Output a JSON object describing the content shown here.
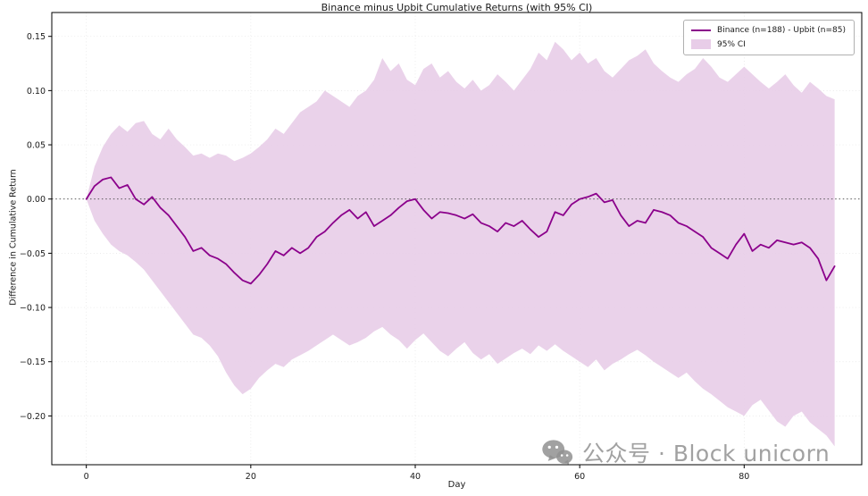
{
  "figure": {
    "title": "Binance minus Upbit Cumulative Returns (with 95% CI)",
    "xlabel": "Day",
    "ylabel": "Difference in Cumulative Return"
  },
  "legend": {
    "items": [
      {
        "label": "Binance (n=188) - Upbit (n=85)",
        "swatch": "line",
        "color": "#8B008B"
      },
      {
        "label": "95% CI",
        "swatch": "patch",
        "color": "#E8CDE8"
      }
    ]
  },
  "axes": {
    "x_ticks": [
      {
        "value": 0,
        "label": "0"
      },
      {
        "value": 20,
        "label": "20"
      },
      {
        "value": 40,
        "label": "40"
      },
      {
        "value": 60,
        "label": "60"
      },
      {
        "value": 80,
        "label": "80"
      }
    ],
    "y_ticks": [
      {
        "value": -0.2,
        "label": "−0.20"
      },
      {
        "value": -0.15,
        "label": "−0.15"
      },
      {
        "value": -0.1,
        "label": "−0.10"
      },
      {
        "value": -0.05,
        "label": "−0.05"
      },
      {
        "value": 0.0,
        "label": "0.00"
      },
      {
        "value": 0.05,
        "label": "0.05"
      },
      {
        "value": 0.1,
        "label": "0.10"
      },
      {
        "value": 0.15,
        "label": "0.15"
      }
    ]
  },
  "chart_data": {
    "type": "line",
    "title": "Binance minus Upbit Cumulative Returns (with 95% CI)",
    "xlabel": "Day",
    "ylabel": "Difference in Cumulative Return",
    "xlim": [
      -4.2,
      94.3
    ],
    "ylim": [
      -0.245,
      0.172
    ],
    "grid": true,
    "zero_line": true,
    "legend_position": "upper right",
    "x": [
      0,
      1,
      2,
      3,
      4,
      5,
      6,
      7,
      8,
      9,
      10,
      11,
      12,
      13,
      14,
      15,
      16,
      17,
      18,
      19,
      20,
      21,
      22,
      23,
      24,
      25,
      26,
      27,
      28,
      29,
      30,
      31,
      32,
      33,
      34,
      35,
      36,
      37,
      38,
      39,
      40,
      41,
      42,
      43,
      44,
      45,
      46,
      47,
      48,
      49,
      50,
      51,
      52,
      53,
      54,
      55,
      56,
      57,
      58,
      59,
      60,
      61,
      62,
      63,
      64,
      65,
      66,
      67,
      68,
      69,
      70,
      71,
      72,
      73,
      74,
      75,
      76,
      77,
      78,
      79,
      80,
      81,
      82,
      83,
      84,
      85,
      86,
      87,
      88,
      89,
      90,
      91
    ],
    "series": [
      {
        "name": "Binance (n=188) - Upbit (n=85)",
        "role": "main",
        "color": "#8B008B",
        "values": [
          0.0,
          0.012,
          0.018,
          0.02,
          0.01,
          0.013,
          0.0,
          -0.005,
          0.002,
          -0.008,
          -0.015,
          -0.025,
          -0.035,
          -0.048,
          -0.045,
          -0.052,
          -0.055,
          -0.06,
          -0.068,
          -0.075,
          -0.078,
          -0.07,
          -0.06,
          -0.048,
          -0.052,
          -0.045,
          -0.05,
          -0.045,
          -0.035,
          -0.03,
          -0.022,
          -0.015,
          -0.01,
          -0.018,
          -0.012,
          -0.025,
          -0.02,
          -0.015,
          -0.008,
          -0.002,
          0.0,
          -0.01,
          -0.018,
          -0.012,
          -0.013,
          -0.015,
          -0.018,
          -0.014,
          -0.022,
          -0.025,
          -0.03,
          -0.022,
          -0.025,
          -0.02,
          -0.028,
          -0.035,
          -0.03,
          -0.012,
          -0.015,
          -0.005,
          0.0,
          0.002,
          0.005,
          -0.003,
          -0.001,
          -0.015,
          -0.025,
          -0.02,
          -0.022,
          -0.01,
          -0.012,
          -0.015,
          -0.022,
          -0.025,
          -0.03,
          -0.035,
          -0.045,
          -0.05,
          -0.055,
          -0.042,
          -0.032,
          -0.048,
          -0.042,
          -0.045,
          -0.038,
          -0.04,
          -0.042,
          -0.04,
          -0.045,
          -0.055,
          -0.075,
          -0.062
        ]
      },
      {
        "name": "95% CI upper",
        "role": "ci_upper",
        "color": "#E8CDE8",
        "values": [
          0.0,
          0.03,
          0.048,
          0.06,
          0.068,
          0.062,
          0.07,
          0.072,
          0.06,
          0.055,
          0.065,
          0.055,
          0.048,
          0.04,
          0.042,
          0.038,
          0.042,
          0.04,
          0.035,
          0.038,
          0.042,
          0.048,
          0.055,
          0.065,
          0.06,
          0.07,
          0.08,
          0.085,
          0.09,
          0.1,
          0.095,
          0.09,
          0.085,
          0.095,
          0.1,
          0.11,
          0.13,
          0.118,
          0.125,
          0.11,
          0.105,
          0.12,
          0.125,
          0.112,
          0.118,
          0.108,
          0.102,
          0.11,
          0.1,
          0.105,
          0.115,
          0.108,
          0.1,
          0.11,
          0.12,
          0.135,
          0.128,
          0.145,
          0.138,
          0.128,
          0.135,
          0.125,
          0.13,
          0.118,
          0.112,
          0.12,
          0.128,
          0.132,
          0.138,
          0.125,
          0.118,
          0.112,
          0.108,
          0.115,
          0.12,
          0.13,
          0.122,
          0.112,
          0.108,
          0.115,
          0.122,
          0.115,
          0.108,
          0.102,
          0.108,
          0.115,
          0.105,
          0.098,
          0.108,
          0.102,
          0.095,
          0.092
        ]
      },
      {
        "name": "95% CI lower",
        "role": "ci_lower",
        "color": "#E8CDE8",
        "values": [
          0.0,
          -0.02,
          -0.032,
          -0.042,
          -0.048,
          -0.052,
          -0.058,
          -0.065,
          -0.075,
          -0.085,
          -0.095,
          -0.105,
          -0.115,
          -0.125,
          -0.128,
          -0.135,
          -0.145,
          -0.16,
          -0.172,
          -0.18,
          -0.175,
          -0.165,
          -0.158,
          -0.152,
          -0.155,
          -0.148,
          -0.144,
          -0.14,
          -0.135,
          -0.13,
          -0.125,
          -0.13,
          -0.135,
          -0.132,
          -0.128,
          -0.122,
          -0.118,
          -0.125,
          -0.13,
          -0.138,
          -0.13,
          -0.124,
          -0.132,
          -0.14,
          -0.145,
          -0.138,
          -0.132,
          -0.142,
          -0.148,
          -0.143,
          -0.152,
          -0.147,
          -0.142,
          -0.138,
          -0.143,
          -0.135,
          -0.14,
          -0.134,
          -0.14,
          -0.145,
          -0.15,
          -0.155,
          -0.148,
          -0.158,
          -0.152,
          -0.148,
          -0.143,
          -0.139,
          -0.144,
          -0.15,
          -0.155,
          -0.16,
          -0.165,
          -0.16,
          -0.168,
          -0.175,
          -0.18,
          -0.186,
          -0.192,
          -0.196,
          -0.2,
          -0.19,
          -0.185,
          -0.195,
          -0.205,
          -0.21,
          -0.2,
          -0.196,
          -0.206,
          -0.212,
          -0.218,
          -0.228
        ]
      }
    ]
  },
  "watermark": {
    "icon": "wechat-icon",
    "text": "公众号 · Block unicorn"
  }
}
